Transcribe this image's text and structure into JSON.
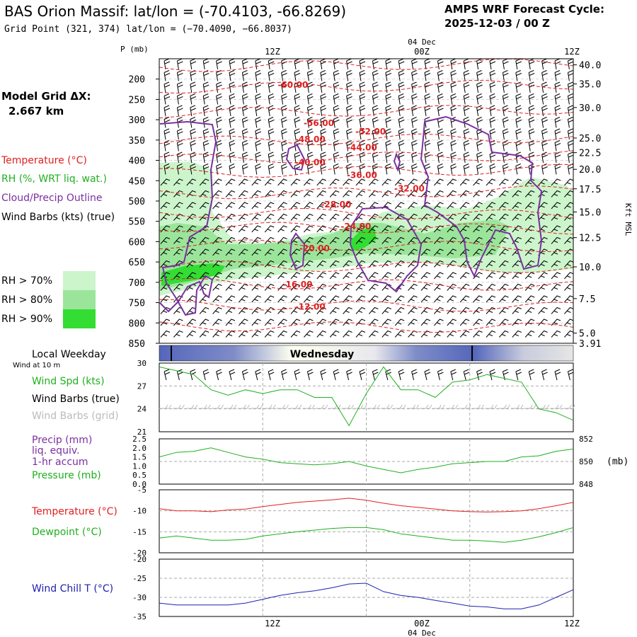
{
  "header": {
    "title": "BAS Orion Massif:  lat/lon = (-70.4103, -66.8269)",
    "subtitle": "Grid Point (321, 374) lat/lon = (−70.4090, −66.8037)",
    "cycle_label": "AMPS WRF Forecast Cycle:",
    "cycle_value": "2025-12-03 / 00  Z"
  },
  "legend": {
    "model_grid_label": "Model Grid ΔX:",
    "model_grid_value": "2.667 km",
    "temperature": "Temperature (°C)",
    "rh": "RH (%, WRT liq. wat.)",
    "cloud": "Cloud/Precip Outline",
    "wind": "Wind Barbs (kts) (true)",
    "rh70": "RH > 70%",
    "rh80": "RH > 80%",
    "rh90": "RH > 90%",
    "local_weekday": "Local Weekday",
    "wind_at_10m": "Wind at 10 m",
    "wind_spd": "Wind Spd (kts)",
    "wind_barbs_true": "Wind Barbs (true)",
    "wind_barbs_grid": "Wind Barbs (grid)",
    "precip_1": "Precip (mm)",
    "precip_2": "liq. equiv.",
    "precip_3": "1-hr accum",
    "pressure": "Pressure (mb)",
    "temp_panel": "Temperature (°C)",
    "dewpoint": "Dewpoint (°C)",
    "windchill": "Wind Chill T (°C)"
  },
  "colors": {
    "temperature": "#e02020",
    "rh_green": "#20b020",
    "cloud": "#7b2fa0",
    "windchill": "#2020b0",
    "rh70": "#ccf5cc",
    "rh80": "#9be59b",
    "rh90": "#33dd33",
    "grid_barbs": "#bbbbbb",
    "weekday_dark": "#5566bb",
    "weekday_light": "#fffff0"
  },
  "time_axis": {
    "top_labels": [
      "12Z",
      "00Z",
      "12Z"
    ],
    "date_label": "04 Dec",
    "bottom_labels": [
      "12Z",
      "00Z",
      "12Z"
    ],
    "weekday": "Wednesday"
  },
  "chart_data": [
    {
      "type": "heatmap",
      "name": "upper-air-cross-section",
      "ylabel_left": "P (mb)",
      "ylabel_right": "Kft MSL",
      "pressure_ticks": [
        200,
        250,
        300,
        350,
        400,
        450,
        500,
        550,
        600,
        650,
        700,
        750,
        800,
        850
      ],
      "height_ticks_kft": [
        "40.0",
        "35.0",
        "30.0",
        "25.0",
        "22.5",
        "20.0",
        "17.5",
        "15.0",
        "12.5",
        "10.0",
        "7.5",
        "5.0",
        "3.91"
      ],
      "height_tick_pressures": [
        165,
        212,
        270,
        345,
        381,
        422,
        470,
        527,
        590,
        662,
        740,
        825,
        850
      ],
      "forecast_hours": [
        0,
        48
      ],
      "pressure_range": [
        150,
        850
      ],
      "temperature_contour_labels": [
        {
          "value": "-60.00",
          "hour": 15.5,
          "p": 213
        },
        {
          "value": "-56.00",
          "hour": 18.5,
          "p": 307
        },
        {
          "value": "-52.00",
          "hour": 24.5,
          "p": 328
        },
        {
          "value": "-48.00",
          "hour": 17.5,
          "p": 347
        },
        {
          "value": "-44.00",
          "hour": 23.5,
          "p": 367
        },
        {
          "value": "-40.00",
          "hour": 17.5,
          "p": 403
        },
        {
          "value": "-36.00",
          "hour": 23.5,
          "p": 435
        },
        {
          "value": "-32.00",
          "hour": 29.0,
          "p": 468
        },
        {
          "value": "-28.00",
          "hour": 20.5,
          "p": 507
        },
        {
          "value": "-24.00",
          "hour": 22.8,
          "p": 561
        },
        {
          "value": "-20.00",
          "hour": 18.0,
          "p": 615
        },
        {
          "value": "-16.00",
          "hour": 16.0,
          "p": 704
        },
        {
          "value": "-12.00",
          "hour": 17.5,
          "p": 759
        }
      ]
    },
    {
      "type": "line",
      "name": "wind-speed",
      "ylim": [
        21,
        30
      ],
      "yticks": [
        21,
        24,
        27,
        30
      ],
      "x_hours": [
        0,
        2,
        4,
        6,
        8,
        10,
        12,
        14,
        16,
        18,
        20,
        22,
        24,
        26,
        28,
        30,
        32,
        34,
        36,
        38,
        40,
        42,
        44,
        46,
        48
      ],
      "series": [
        {
          "name": "Wind Spd (kts)",
          "values": [
            29.5,
            29.0,
            28.5,
            26.5,
            25.8,
            26.5,
            26.0,
            26.5,
            26.5,
            25.5,
            25.5,
            21.8,
            26.0,
            29.5,
            26.5,
            26.5,
            25.5,
            27.5,
            27.8,
            28.5,
            28.0,
            27.5,
            24.0,
            23.5,
            22.5
          ]
        }
      ]
    },
    {
      "type": "line",
      "name": "precip-pressure",
      "ylim_left": [
        0.0,
        2.5
      ],
      "yticks_left": [
        "0.0",
        "0.5",
        "1.0",
        "1.5",
        "2.0",
        "2.5"
      ],
      "ylim_right": [
        848,
        852
      ],
      "yticks_right": [
        "848",
        "850",
        "852"
      ],
      "right_unit": "(mb)",
      "x_hours": [
        0,
        2,
        4,
        6,
        8,
        10,
        12,
        14,
        16,
        18,
        20,
        22,
        24,
        26,
        28,
        30,
        32,
        34,
        36,
        38,
        40,
        42,
        44,
        46,
        48
      ],
      "series": [
        {
          "name": "Pressure (mb)",
          "values": [
            850.4,
            850.8,
            850.9,
            851.2,
            850.8,
            850.4,
            850.2,
            849.9,
            849.8,
            849.7,
            849.8,
            850.0,
            849.6,
            849.3,
            849.0,
            849.3,
            849.5,
            849.8,
            849.9,
            850.0,
            850.0,
            850.4,
            850.5,
            850.9,
            851.1
          ]
        }
      ]
    },
    {
      "type": "line",
      "name": "temperature-dewpoint",
      "ylim": [
        -20,
        -5
      ],
      "yticks": [
        -20,
        -15,
        -10,
        -5
      ],
      "x_hours": [
        0,
        2,
        4,
        6,
        8,
        10,
        12,
        14,
        16,
        18,
        20,
        22,
        24,
        26,
        28,
        30,
        32,
        34,
        36,
        38,
        40,
        42,
        44,
        46,
        48
      ],
      "series": [
        {
          "name": "Temperature (°C)",
          "values": [
            -9.5,
            -10.0,
            -10.0,
            -10.2,
            -9.8,
            -9.6,
            -9.0,
            -8.5,
            -8.0,
            -7.7,
            -7.4,
            -7.0,
            -7.5,
            -8.2,
            -8.8,
            -9.2,
            -9.6,
            -10.0,
            -10.2,
            -10.3,
            -10.2,
            -10.0,
            -9.5,
            -8.8,
            -8.0
          ]
        },
        {
          "name": "Dewpoint (°C)",
          "values": [
            -16.5,
            -16.0,
            -16.5,
            -17.0,
            -17.0,
            -16.8,
            -16.0,
            -15.5,
            -15.0,
            -14.6,
            -14.2,
            -14.0,
            -14.0,
            -14.5,
            -15.5,
            -16.0,
            -16.5,
            -17.0,
            -17.0,
            -17.2,
            -17.5,
            -17.0,
            -16.2,
            -15.2,
            -14.0
          ]
        }
      ]
    },
    {
      "type": "line",
      "name": "wind-chill",
      "ylim": [
        -35,
        -20
      ],
      "yticks": [
        -35,
        -30,
        -25,
        -20
      ],
      "x_hours": [
        0,
        2,
        4,
        6,
        8,
        10,
        12,
        14,
        16,
        18,
        20,
        22,
        24,
        26,
        28,
        30,
        32,
        34,
        36,
        38,
        40,
        42,
        44,
        46,
        48
      ],
      "series": [
        {
          "name": "Wind Chill T (°C)",
          "values": [
            -31.5,
            -32.0,
            -32.0,
            -32.0,
            -32.0,
            -31.5,
            -30.5,
            -29.5,
            -28.8,
            -28.3,
            -27.5,
            -26.5,
            -26.3,
            -28.5,
            -29.5,
            -30.0,
            -30.8,
            -31.5,
            -32.3,
            -32.5,
            -33.0,
            -33.0,
            -32.0,
            -30.0,
            -28.0
          ]
        }
      ]
    }
  ]
}
